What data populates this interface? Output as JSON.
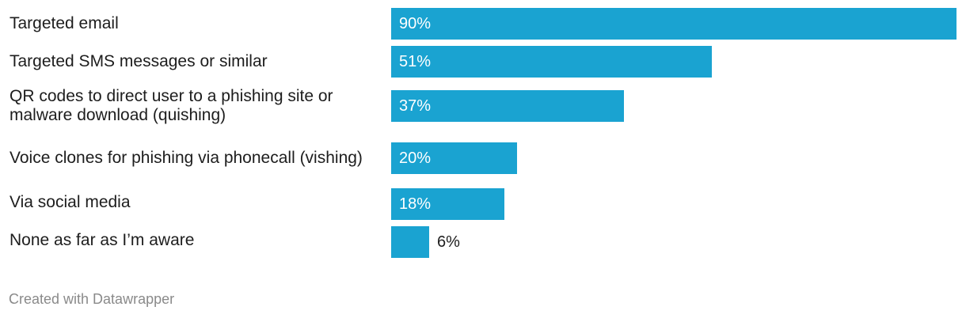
{
  "chart_data": {
    "type": "bar",
    "orientation": "horizontal",
    "categories": [
      "Targeted email",
      "Targeted SMS messages or similar",
      "QR codes to direct user to a phishing site or malware download (quishing)",
      "Voice clones for phishing via phonecall (vishing)",
      "Via social media",
      "None as far as I’m aware"
    ],
    "values": [
      90,
      51,
      37,
      20,
      18,
      6
    ],
    "value_labels": [
      "90%",
      "51%",
      "37%",
      "20%",
      "18%",
      "6%"
    ],
    "unit": "%",
    "xlim": [
      0,
      90
    ],
    "bar_color": "#1aa3d1",
    "grid": false
  },
  "footer": {
    "credit": "Created with Datawrapper"
  }
}
